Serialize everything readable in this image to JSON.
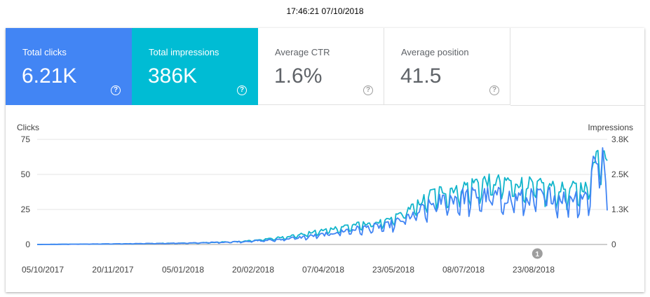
{
  "timestamp": "17:46:21 07/10/2018",
  "metrics": {
    "total_clicks": {
      "label": "Total clicks",
      "value": "6.21K",
      "color": "#4285f4"
    },
    "total_impressions": {
      "label": "Total impressions",
      "value": "386K",
      "color": "#00bcd4"
    },
    "average_ctr": {
      "label": "Average CTR",
      "value": "1.6%"
    },
    "average_position": {
      "label": "Average position",
      "value": "41.5"
    },
    "help_icon": "help-circle-icon",
    "help_glyph": "?"
  },
  "chart_data": {
    "type": "line",
    "title": "",
    "left_axis": {
      "label": "Clicks",
      "ticks": [
        0,
        25,
        50,
        75
      ],
      "tick_labels": [
        "0",
        "25",
        "50",
        "75"
      ],
      "ylim": [
        0,
        75
      ]
    },
    "right_axis": {
      "label": "Impressions",
      "ticks": [
        0,
        1250,
        2500,
        3750
      ],
      "tick_labels": [
        "0",
        "1.3K",
        "2.5K",
        "3.8K"
      ],
      "ylim": [
        0,
        3750
      ]
    },
    "x_tick_labels": [
      "05/10/2017",
      "20/11/2017",
      "05/01/2018",
      "20/02/2018",
      "07/04/2018",
      "23/05/2018",
      "08/07/2018",
      "23/08/2018"
    ],
    "days": 368,
    "annotation": {
      "label": "1",
      "day": 322
    },
    "series": [
      {
        "name": "Clicks",
        "axis": "left",
        "color": "#4285f4",
        "keypoints": [
          [
            0,
            0
          ],
          [
            60,
            0.5
          ],
          [
            100,
            1
          ],
          [
            130,
            2
          ],
          [
            150,
            3
          ],
          [
            170,
            5
          ],
          [
            185,
            7
          ],
          [
            200,
            10
          ],
          [
            215,
            12
          ],
          [
            225,
            13
          ],
          [
            235,
            17
          ],
          [
            245,
            22
          ],
          [
            255,
            28
          ],
          [
            265,
            32
          ],
          [
            275,
            33
          ],
          [
            285,
            34
          ],
          [
            300,
            33
          ],
          [
            315,
            32
          ],
          [
            330,
            34
          ],
          [
            340,
            32
          ],
          [
            350,
            34
          ],
          [
            355,
            33
          ],
          [
            358,
            58
          ],
          [
            362,
            60
          ],
          [
            365,
            62
          ],
          [
            367,
            20
          ]
        ]
      },
      {
        "name": "Impressions",
        "axis": "right",
        "color": "#12b5cb",
        "keypoints": [
          [
            0,
            0
          ],
          [
            60,
            25
          ],
          [
            100,
            50
          ],
          [
            130,
            100
          ],
          [
            150,
            200
          ],
          [
            170,
            350
          ],
          [
            185,
            500
          ],
          [
            200,
            650
          ],
          [
            215,
            750
          ],
          [
            225,
            800
          ],
          [
            235,
            1100
          ],
          [
            245,
            1400
          ],
          [
            250,
            1600
          ],
          [
            255,
            1800
          ],
          [
            265,
            1900
          ],
          [
            275,
            2000
          ],
          [
            285,
            2200
          ],
          [
            295,
            2150
          ],
          [
            300,
            2200
          ],
          [
            315,
            2100
          ],
          [
            330,
            2000
          ],
          [
            340,
            1900
          ],
          [
            350,
            2000
          ],
          [
            355,
            1950
          ],
          [
            358,
            3000
          ],
          [
            362,
            3200
          ],
          [
            365,
            3350
          ],
          [
            367,
            3050
          ]
        ]
      }
    ]
  }
}
